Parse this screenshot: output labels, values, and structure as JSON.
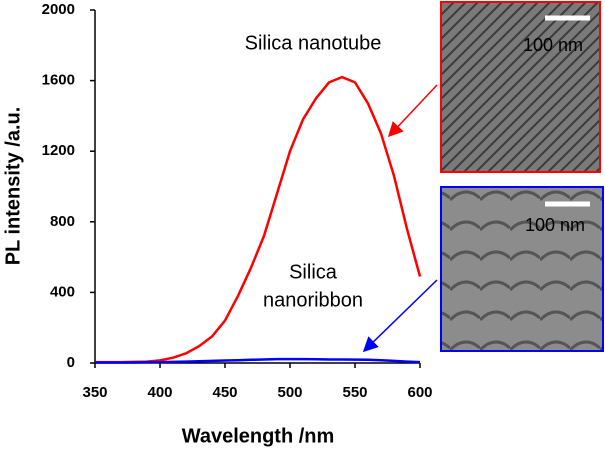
{
  "chart_data": {
    "type": "line",
    "x": [
      350,
      360,
      370,
      380,
      390,
      400,
      410,
      420,
      430,
      440,
      450,
      460,
      470,
      480,
      490,
      500,
      510,
      520,
      530,
      540,
      550,
      560,
      570,
      580,
      590,
      600
    ],
    "series": [
      {
        "name": "Silica nanotube",
        "color": "#ff0000",
        "values": [
          5,
          5,
          5,
          6,
          8,
          15,
          30,
          55,
          95,
          150,
          240,
          380,
          540,
          720,
          960,
          1200,
          1380,
          1500,
          1590,
          1620,
          1590,
          1470,
          1300,
          1060,
          760,
          490
        ]
      },
      {
        "name": "Silica nanoribbon",
        "color": "#0000ff",
        "values": [
          3,
          3,
          3,
          3,
          4,
          5,
          6,
          8,
          10,
          12,
          14,
          16,
          18,
          20,
          22,
          22,
          22,
          21,
          20,
          20,
          19,
          18,
          16,
          12,
          8,
          5
        ]
      }
    ],
    "xlabel": "Wavelength /nm",
    "ylabel": "PL intensity /a.u.",
    "xlim": [
      350,
      600
    ],
    "xticks": [
      350,
      400,
      450,
      500,
      550,
      600
    ],
    "ylim": [
      0,
      2000
    ],
    "yticks": [
      0,
      400,
      800,
      1200,
      1600,
      2000
    ],
    "annotations": [
      {
        "lines": [
          "Silica nanotube"
        ],
        "color": "#000000"
      },
      {
        "lines": [
          "Silica",
          "nanoribbon"
        ],
        "color": "#000000"
      }
    ],
    "insets": [
      {
        "scale_label": "100 nm",
        "color": "#ff0000"
      },
      {
        "scale_label": "100 nm",
        "color": "#0000ff"
      }
    ]
  }
}
